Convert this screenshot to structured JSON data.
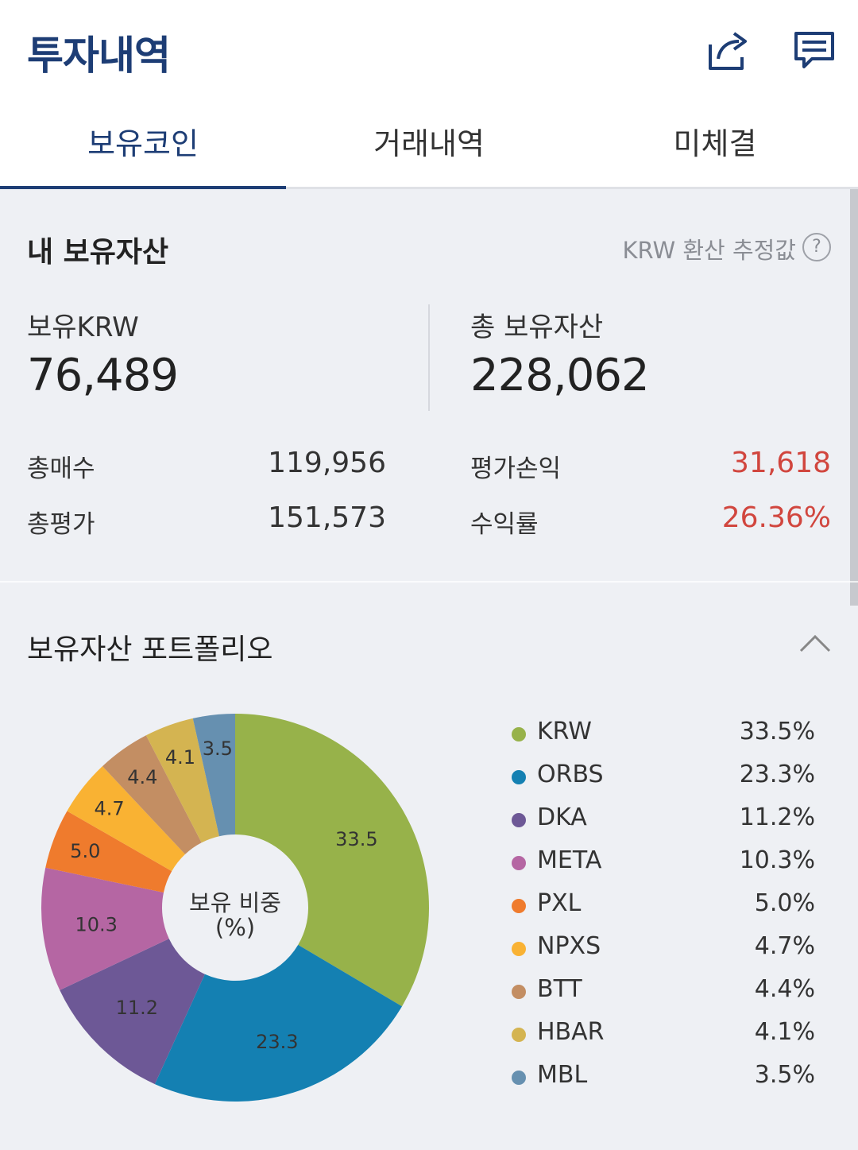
{
  "header": {
    "title": "투자내역",
    "icons": [
      "share-icon",
      "chat-icon"
    ]
  },
  "tabs": [
    {
      "label": "보유코인",
      "active": true
    },
    {
      "label": "거래내역",
      "active": false
    },
    {
      "label": "미체결",
      "active": false
    }
  ],
  "assets": {
    "title": "내 보유자산",
    "krw_note": "KRW 환산 추정값",
    "help_symbol": "?",
    "krw_label": "보유KRW",
    "krw_value": "76,489",
    "total_label": "총 보유자산",
    "total_value": "228,062",
    "rows": {
      "buy_label": "총매수",
      "buy_value": "119,956",
      "eval_label": "총평가",
      "eval_value": "151,573",
      "pl_label": "평가손익",
      "pl_value": "31,618",
      "rate_label": "수익률",
      "rate_value": "26.36%"
    },
    "colors": {
      "profit": "#d1463e"
    }
  },
  "portfolio": {
    "title": "보유자산 포트폴리오",
    "center_line1": "보유 비중",
    "center_line2": "(%)",
    "legend": [
      {
        "name": "KRW",
        "pct": "33.5%"
      },
      {
        "name": "ORBS",
        "pct": "23.3%"
      },
      {
        "name": "DKA",
        "pct": "11.2%"
      },
      {
        "name": "META",
        "pct": "10.3%"
      },
      {
        "name": "PXL",
        "pct": "5.0%"
      },
      {
        "name": "NPXS",
        "pct": "4.7%"
      },
      {
        "name": "BTT",
        "pct": "4.4%"
      },
      {
        "name": "HBAR",
        "pct": "4.1%"
      },
      {
        "name": "MBL",
        "pct": "3.5%"
      }
    ]
  },
  "chart_data": {
    "type": "pie",
    "categories": [
      "KRW",
      "ORBS",
      "DKA",
      "META",
      "PXL",
      "NPXS",
      "BTT",
      "HBAR",
      "MBL"
    ],
    "values": [
      33.5,
      23.3,
      11.2,
      10.3,
      5.0,
      4.7,
      4.4,
      4.1,
      3.5
    ],
    "labels": [
      "33.5",
      "23.3",
      "11.2",
      "10.3",
      "5.0",
      "4.7",
      "4.4",
      "4.1",
      "3.5"
    ],
    "colors": [
      "#97b24a",
      "#1480b2",
      "#6d5896",
      "#b566a3",
      "#ef7b2d",
      "#f9b233",
      "#c38e63",
      "#d4b451",
      "#6690b0"
    ],
    "donut": true
  }
}
